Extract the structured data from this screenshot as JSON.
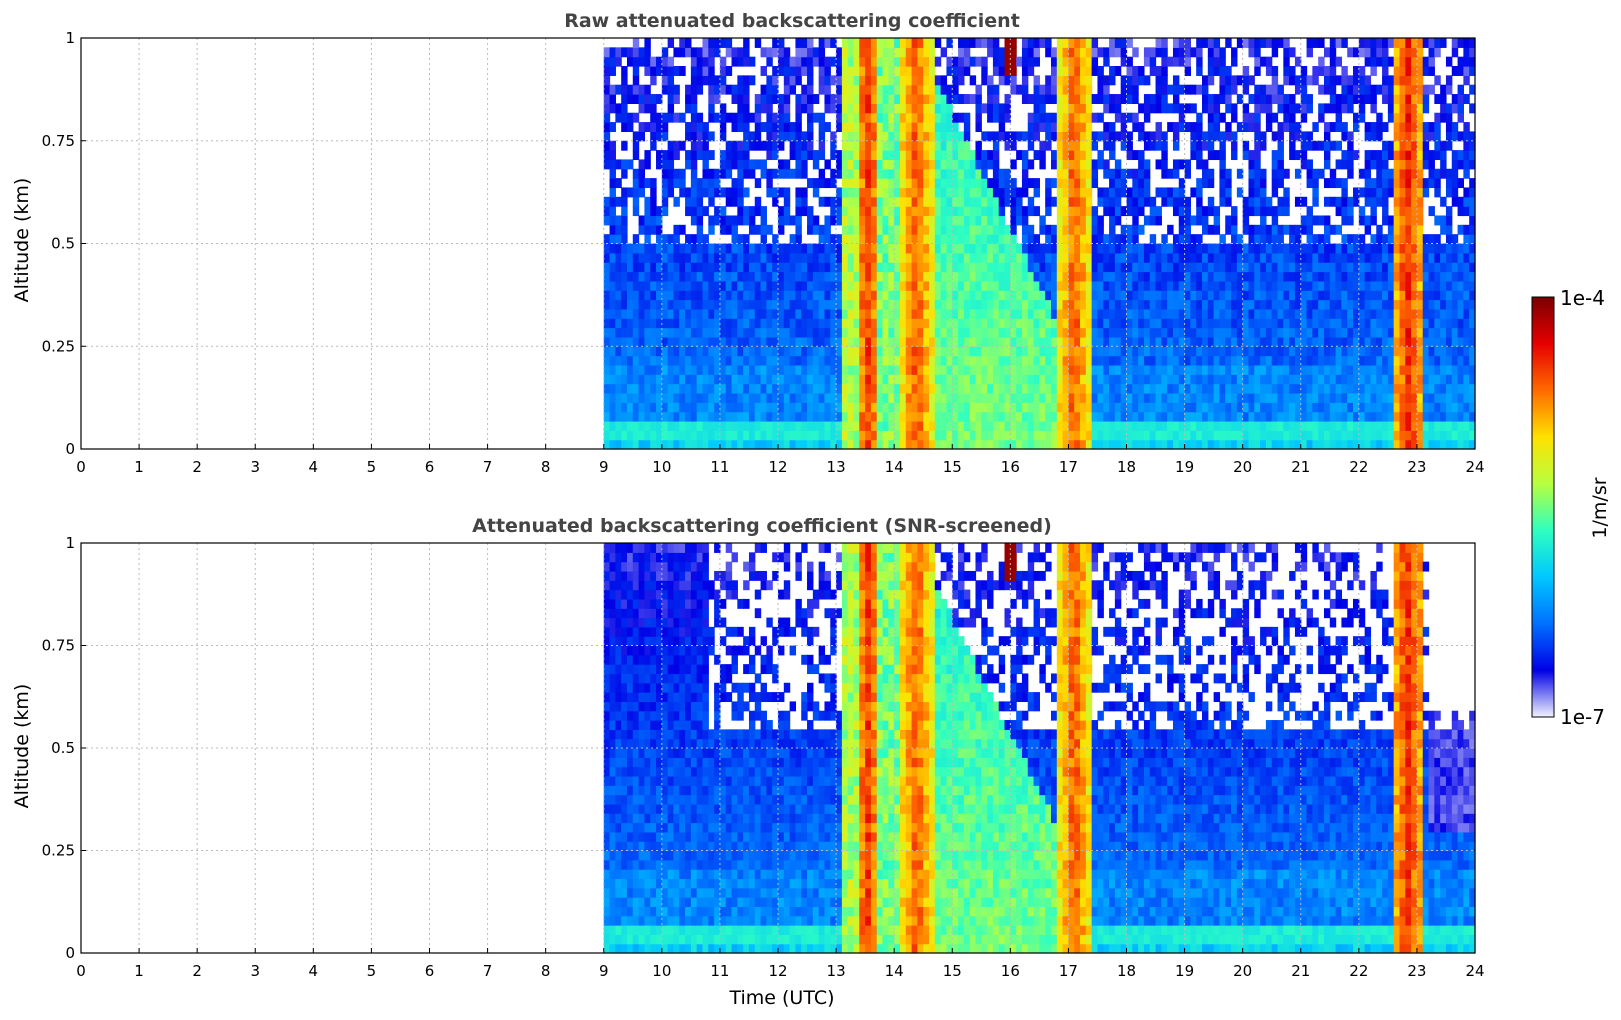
{
  "chart_data": [
    {
      "type": "heatmap",
      "title": "Raw attenuated backscattering coefficient",
      "xlabel": "",
      "ylabel": "Altitude (km)",
      "xlim": [
        0,
        24
      ],
      "ylim": [
        0,
        1
      ],
      "x_ticks": [
        "0",
        "1",
        "2",
        "3",
        "4",
        "5",
        "6",
        "7",
        "8",
        "9",
        "10",
        "11",
        "12",
        "13",
        "14",
        "15",
        "16",
        "17",
        "18",
        "19",
        "20",
        "21",
        "22",
        "23",
        "24"
      ],
      "y_ticks": [
        "0",
        "0.25",
        "0.5",
        "0.75",
        "1"
      ],
      "grid": true,
      "data_start_time": 9,
      "screened": false,
      "description_bands": [
        {
          "t": [
            13.35,
            13.75
          ],
          "level": "high"
        },
        {
          "t": [
            14.05,
            14.7
          ],
          "level": "high"
        },
        {
          "t": [
            16.85,
            17.35
          ],
          "level": "high"
        },
        {
          "t": [
            22.65,
            23.05
          ],
          "level": "high"
        },
        {
          "t": [
            15.85,
            16.05
          ],
          "level": "very-high-top"
        }
      ]
    },
    {
      "type": "heatmap",
      "title": "Attenuated backscattering coefficient (SNR-screened)",
      "xlabel": "Time (UTC)",
      "ylabel": "Altitude (km)",
      "xlim": [
        0,
        24
      ],
      "ylim": [
        0,
        1
      ],
      "x_ticks": [
        "0",
        "1",
        "2",
        "3",
        "4",
        "5",
        "6",
        "7",
        "8",
        "9",
        "10",
        "11",
        "12",
        "13",
        "14",
        "15",
        "16",
        "17",
        "18",
        "19",
        "20",
        "21",
        "22",
        "23",
        "24"
      ],
      "y_ticks": [
        "0",
        "0.25",
        "0.5",
        "0.75",
        "1"
      ],
      "grid": true,
      "data_start_time": 9,
      "screened": true
    }
  ],
  "colorbar": {
    "label": "1/m/sr",
    "max_label": "1e-4",
    "min_label": "1e-7",
    "scale": "log",
    "colormap": [
      "#f2f2ff",
      "#0000e6",
      "#0070ff",
      "#00c8ff",
      "#2fffc0",
      "#b8ff3f",
      "#ffe100",
      "#ff6a00",
      "#e60000",
      "#7a0000"
    ]
  }
}
